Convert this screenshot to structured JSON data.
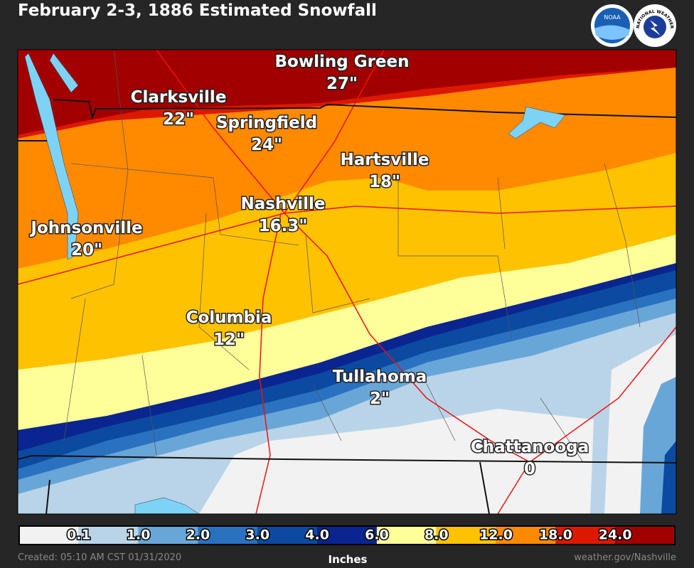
{
  "header": {
    "title": "February 2-3, 1886 Estimated Snowfall"
  },
  "logos": {
    "noaa": "NOAA",
    "nws": "NATIONAL WEATHER SERVICE"
  },
  "map": {
    "cities": [
      {
        "name": "Bowling Green",
        "amount": "27\""
      },
      {
        "name": "Clarksville",
        "amount": "22\""
      },
      {
        "name": "Springfield",
        "amount": "24\""
      },
      {
        "name": "Hartsville",
        "amount": "18\""
      },
      {
        "name": "Nashville",
        "amount": "16.3\""
      },
      {
        "name": "Johnsonville",
        "amount": "20\""
      },
      {
        "name": "Columbia",
        "amount": "12\""
      },
      {
        "name": "Tullahoma",
        "amount": "2\""
      },
      {
        "name": "Chattanooga",
        "amount": "0"
      }
    ]
  },
  "legend": {
    "title": "Inches",
    "ticks": [
      "0.1",
      "1.0",
      "2.0",
      "3.0",
      "4.0",
      "6.0",
      "8.0",
      "12.0",
      "18.0",
      "24.0"
    ],
    "colors": [
      "#f2f2f2",
      "#b9d4e8",
      "#69a6d8",
      "#2a72c0",
      "#0b4aa0",
      "#0a2590",
      "#ffff99",
      "#ffc200",
      "#ff8a00",
      "#dd1800",
      "#a20000"
    ]
  },
  "footer": {
    "created": "Created: 05:10 AM CST 01/31/2020",
    "source": "weather.gov/Nashville"
  }
}
